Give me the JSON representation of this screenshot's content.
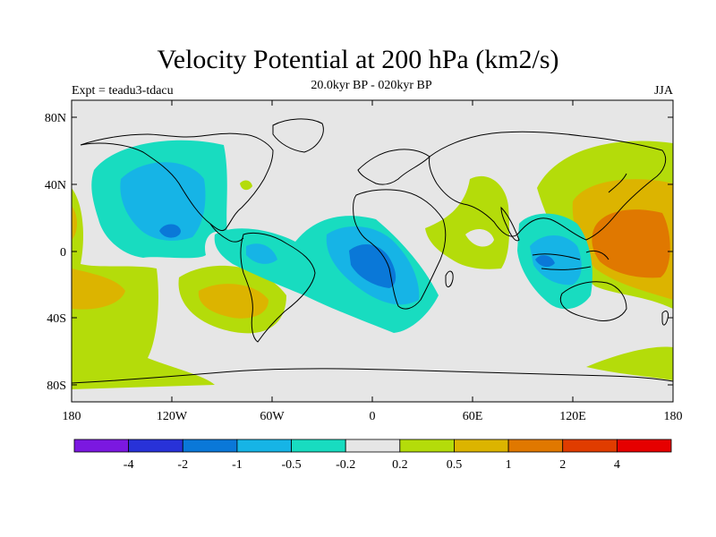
{
  "title": "Velocity Potential at 200 hPa (km2/s)",
  "subtitle": "20.0kyr BP - 020kyr BP",
  "left_label": "Expt = teadu3-tdacu",
  "right_label": "JJA",
  "axes": {
    "y_ticks": [
      "80N",
      "40N",
      "0",
      "40S",
      "80S"
    ],
    "x_ticks": [
      "180",
      "120W",
      "60W",
      "0",
      "60E",
      "120E",
      "180"
    ]
  },
  "colorbar": {
    "labels": [
      "-4",
      "-2",
      "-1",
      "-0.5",
      "-0.2",
      "0.2",
      "0.5",
      "1",
      "2",
      "4"
    ],
    "colors": [
      "#7b18e0",
      "#2832d8",
      "#0a78d8",
      "#16b4e6",
      "#18dcc0",
      "#e6e6e6",
      "#b4dc0a",
      "#dcb400",
      "#e07800",
      "#e03c00",
      "#e60000"
    ]
  },
  "palette": {
    "background": "#e6e6e6",
    "land_line": "#000000"
  }
}
